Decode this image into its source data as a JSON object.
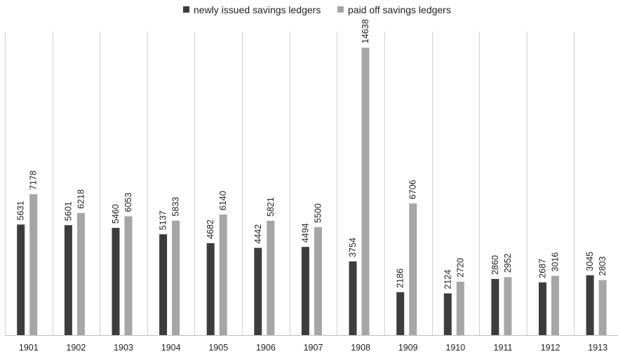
{
  "chart_data": {
    "type": "bar",
    "categories": [
      "1901",
      "1902",
      "1903",
      "1904",
      "1905",
      "1906",
      "1907",
      "1908",
      "1909",
      "1910",
      "1911",
      "1912",
      "1913"
    ],
    "series": [
      {
        "name": "newly issued savings ledgers",
        "color": "#3d3d3d",
        "values": [
          5631,
          5601,
          5460,
          5137,
          4682,
          4442,
          4494,
          3754,
          2186,
          2124,
          2860,
          2687,
          3045
        ]
      },
      {
        "name": "paid off savings ledgers",
        "color": "#a6a6a6",
        "values": [
          7178,
          6218,
          6053,
          5833,
          6140,
          5821,
          5500,
          14638,
          6706,
          2720,
          2952,
          3016,
          2803
        ]
      }
    ],
    "ylim": [
      0,
      15600
    ],
    "grid": "vertical category separators",
    "legend": "top-center",
    "data_labels": true,
    "xlabel": "",
    "ylabel": ""
  }
}
